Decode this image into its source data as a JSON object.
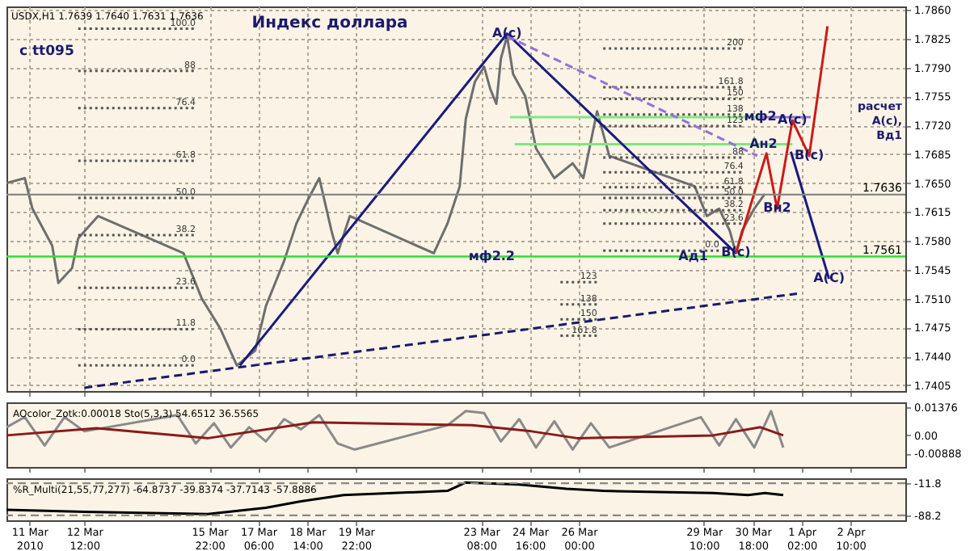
{
  "chart_data": [
    {
      "type": "line",
      "title": "Индекс доллара",
      "subtitle": "USDX,H1 1.7639 1.7640 1.7631 1.7636",
      "tick_labels": "y",
      "grid": true,
      "xlim": [
        "2010-03-10T09:00",
        "2010-04-03T22:00"
      ],
      "xticks": [
        {
          "value": "2010-03-11T00:00",
          "label": null
        },
        {
          "value": "2010-03-12T12:00",
          "label": null
        },
        {
          "value": "2010-03-15T22:00",
          "label": null
        },
        {
          "value": "2010-03-17T06:00",
          "label": null
        },
        {
          "value": "2010-03-18T14:00",
          "label": null
        },
        {
          "value": "2010-03-19T22:00",
          "label": null
        },
        {
          "value": "2010-03-23T08:00",
          "label": null
        },
        {
          "value": "2010-03-24T16:00",
          "label": null
        },
        {
          "value": "2010-03-26T00:00",
          "label": null
        },
        {
          "value": "2010-03-29T10:00",
          "label": null
        },
        {
          "value": "2010-03-30T18:00",
          "label": null
        },
        {
          "value": "2010-04-01T02:00",
          "label": null
        },
        {
          "value": "2010-04-02T10:00",
          "label": null
        }
      ],
      "ylim": [
        1.7398,
        1.7864
      ],
      "yticks": [
        {
          "value": 1.786,
          "label": "1.7860"
        },
        1.7825,
        {
          "value": 1.779,
          "label": "1.7790"
        },
        1.7755,
        {
          "value": 1.772,
          "label": "1.7720"
        },
        1.7685,
        {
          "value": 1.765,
          "label": "1.7650"
        },
        1.7615,
        {
          "value": 1.758,
          "label": "1.7580"
        },
        1.7545,
        {
          "value": 1.751,
          "label": "1.7510"
        },
        1.7475,
        {
          "value": 1.744,
          "label": "1.7440"
        },
        1.7405
      ],
      "series": [
        {
          "color": "#6e6e6e",
          "x": [
            "2010-03-10T09:00",
            "2010-03-10T21:00",
            "2010-03-11T02:00",
            "2010-03-11T15:00",
            "2010-03-11T19:00",
            "2010-03-12T04:00",
            "2010-03-12T08:00",
            "2010-03-12T21:00",
            "2010-03-15T05:00",
            "2010-03-15T17:00",
            "2010-03-16T05:00",
            "2010-03-16T16:00",
            "2010-03-17T04:00",
            "2010-03-17T11:00",
            "2010-03-17T23:00",
            "2010-03-18T07:00",
            "2010-03-18T14:00",
            "2010-03-18T22:00",
            "2010-03-19T06:00",
            "2010-03-19T10:00",
            "2010-03-19T18:00",
            "2010-03-22T01:00",
            "2010-03-22T10:00",
            "2010-03-22T18:00",
            "2010-03-22T22:00",
            "2010-03-23T04:00",
            "2010-03-23T10:00",
            "2010-03-23T14:00",
            "2010-03-23T18:00",
            "2010-03-23T21:00",
            "2010-03-24T01:00",
            "2010-03-24T05:00",
            "2010-03-24T13:00",
            "2010-03-24T20:00",
            "2010-03-25T08:00",
            "2010-03-25T20:00",
            "2010-03-26T03:00",
            "2010-03-26T08:00",
            "2010-03-26T12:00",
            "2010-03-26T20:00",
            "2010-03-29T04:00",
            "2010-03-29T12:00",
            "2010-03-29T20:00",
            "2010-03-30T03:00",
            "2010-03-30T07:00",
            "2010-03-30T11:00",
            "2010-03-30T19:00",
            "2010-03-31T02:00"
          ],
          "values": [
            1.765,
            1.7656,
            1.7619,
            1.7574,
            1.7529,
            1.7547,
            1.7583,
            1.761,
            1.7565,
            1.751,
            1.7474,
            1.7429,
            1.7447,
            1.7501,
            1.7556,
            1.7601,
            1.7628,
            1.7656,
            1.7592,
            1.7565,
            1.761,
            1.7565,
            1.7601,
            1.7646,
            1.7728,
            1.7773,
            1.7791,
            1.7764,
            1.7746,
            1.7801,
            1.7828,
            1.7782,
            1.7755,
            1.7692,
            1.7656,
            1.7674,
            1.7656,
            1.7701,
            1.7737,
            1.7683,
            1.7646,
            1.761,
            1.7619,
            1.7592,
            1.7565,
            1.7592,
            1.7619,
            1.7637
          ]
        },
        {
          "color": "#7ee87e",
          "x": [
            "2010-03-24T03:00",
            "2010-03-30T23:00"
          ],
          "values": [
            1.773,
            1.773
          ]
        },
        {
          "color": "#7ee87e",
          "x": [
            "2010-03-24T06:00",
            "2010-03-31T20:00"
          ],
          "values": [
            1.7697,
            1.7697
          ]
        },
        {
          "color": "#555555",
          "line_style": "dotted",
          "x": [
            "2010-03-12T08:00",
            "2010-03-15T13:00"
          ],
          "values": [
            1.7837,
            1.7837
          ]
        },
        {
          "color": "#555555",
          "line_style": "dotted",
          "x": [
            "2010-03-12T08:00",
            "2010-03-15T13:00"
          ],
          "values": [
            1.7786,
            1.7786
          ]
        },
        {
          "color": "#555555",
          "line_style": "dotted",
          "x": [
            "2010-03-12T08:00",
            "2010-03-15T13:00"
          ],
          "values": [
            1.7741,
            1.7741
          ]
        },
        {
          "color": "#555555",
          "line_style": "dotted",
          "x": [
            "2010-03-12T08:00",
            "2010-03-15T13:00"
          ],
          "values": [
            1.7677,
            1.7677
          ]
        },
        {
          "color": "#555555",
          "line_style": "dotted",
          "x": [
            "2010-03-12T08:00",
            "2010-03-15T13:00"
          ],
          "values": [
            1.7632,
            1.7632
          ]
        },
        {
          "color": "#555555",
          "line_style": "dotted",
          "x": [
            "2010-03-12T08:00",
            "2010-03-15T13:00"
          ],
          "values": [
            1.7587,
            1.7587
          ]
        },
        {
          "color": "#555555",
          "line_style": "dotted",
          "x": [
            "2010-03-12T08:00",
            "2010-03-15T13:00"
          ],
          "values": [
            1.7523,
            1.7523
          ]
        },
        {
          "color": "#555555",
          "line_style": "dotted",
          "x": [
            "2010-03-12T08:00",
            "2010-03-15T13:00"
          ],
          "values": [
            1.7473,
            1.7473
          ]
        },
        {
          "color": "#555555",
          "line_style": "dotted",
          "x": [
            "2010-03-12T08:00",
            "2010-03-15T13:00"
          ],
          "values": [
            1.7429,
            1.7429
          ]
        },
        {
          "color": "#555555",
          "line_style": "dotted",
          "x": [
            "2010-03-26T16:00",
            "2010-03-30T12:00"
          ],
          "values": [
            1.7813,
            1.7813
          ]
        },
        {
          "color": "#555555",
          "line_style": "dotted",
          "x": [
            "2010-03-26T16:00",
            "2010-03-30T12:00"
          ],
          "values": [
            1.7766,
            1.7766
          ]
        },
        {
          "color": "#555555",
          "line_style": "dotted",
          "x": [
            "2010-03-26T16:00",
            "2010-03-30T12:00"
          ],
          "values": [
            1.7752,
            1.7752
          ]
        },
        {
          "color": "#555555",
          "line_style": "dotted",
          "x": [
            "2010-03-26T16:00",
            "2010-03-30T12:00"
          ],
          "values": [
            1.7733,
            1.7733
          ]
        },
        {
          "color": "#555555",
          "line_style": "dotted",
          "x": [
            "2010-03-26T16:00",
            "2010-03-30T12:00"
          ],
          "values": [
            1.7719,
            1.7719
          ]
        },
        {
          "color": "#555555",
          "line_style": "dotted",
          "x": [
            "2010-03-26T16:00",
            "2010-03-30T12:00"
          ],
          "values": [
            1.7681,
            1.7681
          ]
        },
        {
          "color": "#555555",
          "line_style": "dotted",
          "x": [
            "2010-03-26T16:00",
            "2010-03-30T12:00"
          ],
          "values": [
            1.7663,
            1.7663
          ]
        },
        {
          "color": "#555555",
          "line_style": "dotted",
          "x": [
            "2010-03-26T16:00",
            "2010-03-30T12:00"
          ],
          "values": [
            1.7645,
            1.7645
          ]
        },
        {
          "color": "#555555",
          "line_style": "dotted",
          "x": [
            "2010-03-26T16:00",
            "2010-03-30T12:00"
          ],
          "values": [
            1.7632,
            1.7632
          ]
        },
        {
          "color": "#555555",
          "line_style": "dotted",
          "x": [
            "2010-03-26T16:00",
            "2010-03-30T12:00"
          ],
          "values": [
            1.7617,
            1.7617
          ]
        },
        {
          "color": "#555555",
          "line_style": "dotted",
          "x": [
            "2010-03-26T16:00",
            "2010-03-30T12:00"
          ],
          "values": [
            1.7601,
            1.7601
          ]
        },
        {
          "color": "#555555",
          "line_style": "dotted",
          "x": [
            "2010-03-26T16:00",
            "2010-03-29T20:00"
          ],
          "values": [
            1.7568,
            1.7568
          ]
        },
        {
          "color": "#555555",
          "line_style": "dotted",
          "x": [
            "2010-03-25T12:00",
            "2010-03-26T12:00"
          ],
          "values": [
            1.753,
            1.753
          ]
        },
        {
          "color": "#555555",
          "line_style": "dotted",
          "x": [
            "2010-03-25T12:00",
            "2010-03-26T12:00"
          ],
          "values": [
            1.7503,
            1.7503
          ]
        },
        {
          "color": "#555555",
          "line_style": "dotted",
          "x": [
            "2010-03-25T12:00",
            "2010-03-26T12:00"
          ],
          "values": [
            1.7485,
            1.7485
          ]
        },
        {
          "color": "#555555",
          "line_style": "dotted",
          "x": [
            "2010-03-25T12:00",
            "2010-03-26T12:00"
          ],
          "values": [
            1.7465,
            1.7465
          ]
        },
        {
          "color": "#1a1a80",
          "x": [
            "2010-03-16T18:00",
            "2010-03-24T01:00",
            "2010-03-30T07:00"
          ],
          "values": [
            1.7429,
            1.7831,
            1.7565
          ]
        },
        {
          "color": "#1a1a80",
          "x": [
            "2010-03-31T19:00",
            "2010-04-01T20:00"
          ],
          "values": [
            1.7688,
            1.7534
          ]
        },
        {
          "color": "#cc1a1a",
          "x": [
            "2010-03-30T07:00",
            "2010-03-31T03:00",
            "2010-03-31T10:00",
            "2010-03-31T20:00",
            "2010-04-01T07:00",
            "2010-04-01T19:00"
          ],
          "values": [
            1.7565,
            1.7686,
            1.7619,
            1.7726,
            1.7683,
            1.784
          ]
        },
        {
          "color": "#9370db",
          "line_style": "dashed",
          "x": [
            "2010-03-24T01:00",
            "2010-03-30T21:00"
          ],
          "values": [
            1.7828,
            1.7683
          ]
        },
        {
          "color": "#9370db",
          "x": [
            "2010-03-30T23:00",
            "2010-04-01T08:00"
          ],
          "values": [
            1.773,
            1.773
          ]
        },
        {
          "color": "#1a1a6e",
          "line_style": "dashed",
          "x": [
            "2010-03-12T12:00",
            "2010-03-31T23:00"
          ],
          "values": [
            1.7402,
            1.7516
          ]
        }
      ],
      "ref_lines": [
        {
          "axis": "y",
          "value": 1.7561,
          "label": "1.7561",
          "color": "#33dd33"
        },
        {
          "axis": "y",
          "value": 1.7636,
          "label": "1.7636",
          "color": "#888888"
        }
      ],
      "annotations": [
        "c tt095",
        "расчет A(c), Вд1",
        {
          "text": "A(c)",
          "x": "2010-03-24T01:00",
          "y": 1.7831
        },
        {
          "text": "мф2.2",
          "x": "2010-03-23T15:00",
          "y": 1.7561
        },
        {
          "text": "Ад1",
          "x": "2010-03-29T03:00",
          "y": 1.7561
        },
        {
          "text": "B(c)",
          "x": "2010-03-30T07:00",
          "y": 1.7565
        },
        {
          "text": "мф2",
          "x": "2010-03-30T23:00",
          "y": 1.773
        },
        {
          "text": "A(c)",
          "x": "2010-03-31T20:00",
          "y": 1.7726
        },
        {
          "text": "Ан2",
          "x": "2010-03-31T01:00",
          "y": 1.7697
        },
        {
          "text": "B(c)",
          "x": "2010-04-01T07:00",
          "y": 1.7683
        },
        {
          "text": "Вн2",
          "x": "2010-03-31T10:00",
          "y": 1.7619
        },
        {
          "text": "A(C)",
          "x": "2010-04-01T20:00",
          "y": 1.7534
        },
        {
          "text": "100.0",
          "x": "2010-03-15T13:00",
          "y": 1.7837
        },
        {
          "text": "88",
          "x": "2010-03-15T13:00",
          "y": 1.7786
        },
        {
          "text": "76.4",
          "x": "2010-03-15T13:00",
          "y": 1.7741
        },
        {
          "text": "61.8",
          "x": "2010-03-15T13:00",
          "y": 1.7677
        },
        {
          "text": "50.0",
          "x": "2010-03-15T13:00",
          "y": 1.7632
        },
        {
          "text": "38.2",
          "x": "2010-03-15T13:00",
          "y": 1.7587
        },
        {
          "text": "23.6",
          "x": "2010-03-15T13:00",
          "y": 1.7523
        },
        {
          "text": "11.8",
          "x": "2010-03-15T13:00",
          "y": 1.7473
        },
        {
          "text": "0.0",
          "x": "2010-03-15T13:00",
          "y": 1.7429
        },
        {
          "text": "200",
          "x": "2010-03-30T12:00",
          "y": 1.7813
        },
        {
          "text": "161.8",
          "x": "2010-03-30T12:00",
          "y": 1.7766
        },
        {
          "text": "150",
          "x": "2010-03-30T12:00",
          "y": 1.7752
        },
        {
          "text": "138",
          "x": "2010-03-30T12:00",
          "y": 1.7733
        },
        {
          "text": "123",
          "x": "2010-03-30T12:00",
          "y": 1.7719
        },
        {
          "text": "88",
          "x": "2010-03-30T12:00",
          "y": 1.7681
        },
        {
          "text": "76.4",
          "x": "2010-03-30T12:00",
          "y": 1.7663
        },
        {
          "text": "61.8",
          "x": "2010-03-30T12:00",
          "y": 1.7645
        },
        {
          "text": "50.0",
          "x": "2010-03-30T12:00",
          "y": 1.7632
        },
        {
          "text": "38.2",
          "x": "2010-03-30T12:00",
          "y": 1.7617
        },
        {
          "text": "23.6",
          "x": "2010-03-30T12:00",
          "y": 1.7601
        },
        {
          "text": "0.0",
          "x": "2010-03-29T20:00",
          "y": 1.7568
        },
        {
          "text": "123",
          "x": "2010-03-26T12:00",
          "y": 1.753
        },
        {
          "text": "138",
          "x": "2010-03-26T12:00",
          "y": 1.7503
        },
        {
          "text": "150",
          "x": "2010-03-26T12:00",
          "y": 1.7485
        },
        {
          "text": "161.8",
          "x": "2010-03-26T12:00",
          "y": 1.7465
        }
      ]
    },
    {
      "type": "line",
      "tick_labels": "y",
      "xlim": [
        "2010-03-10T09:00",
        "2010-04-03T22:00"
      ],
      "xticks": [
        {
          "value": "2010-03-11T00:00",
          "label": null
        },
        {
          "value": "2010-03-12T12:00",
          "label": null
        },
        {
          "value": "2010-03-15T22:00",
          "label": null
        },
        {
          "value": "2010-03-17T06:00",
          "label": null
        },
        {
          "value": "2010-03-18T14:00",
          "label": null
        },
        {
          "value": "2010-03-19T22:00",
          "label": null
        },
        {
          "value": "2010-03-23T08:00",
          "label": null
        },
        {
          "value": "2010-03-24T16:00",
          "label": null
        },
        {
          "value": "2010-03-26T00:00",
          "label": null
        },
        {
          "value": "2010-03-29T10:00",
          "label": null
        },
        {
          "value": "2010-03-30T18:00",
          "label": null
        },
        {
          "value": "2010-04-01T02:00",
          "label": null
        },
        {
          "value": "2010-04-02T10:00",
          "label": null
        }
      ],
      "ylim": [
        -0.0156,
        0.0163
      ],
      "yticks": [
        0.01376,
        {
          "value": 0,
          "label": "0.00"
        },
        -0.00888
      ],
      "series": [
        {
          "color": "#8a8a8a",
          "x": [
            "2010-03-10T09:00",
            "2010-03-10T21:00",
            "2010-03-11T10:00",
            "2010-03-11T23:00",
            "2010-03-12T12:00",
            "2010-03-15T01:00",
            "2010-03-15T13:00",
            "2010-03-16T01:00",
            "2010-03-16T12:00",
            "2010-03-17T00:00",
            "2010-03-17T11:00",
            "2010-03-17T23:00",
            "2010-03-18T10:00",
            "2010-03-18T22:00",
            "2010-03-19T10:00",
            "2010-03-19T21:00",
            "2010-03-22T10:00",
            "2010-03-22T22:00",
            "2010-03-23T10:00",
            "2010-03-23T21:00",
            "2010-03-24T09:00",
            "2010-03-24T20:00",
            "2010-03-25T08:00",
            "2010-03-25T20:00",
            "2010-03-26T08:00",
            "2010-03-26T20:00",
            "2010-03-29T08:00",
            "2010-03-29T20:00",
            "2010-03-30T07:00",
            "2010-03-30T19:00",
            "2010-03-31T06:00",
            "2010-03-31T14:00"
          ],
          "values": [
            0.004,
            0.009,
            -0.005,
            0.009,
            0.002,
            0.01,
            -0.004,
            0.006,
            -0.006,
            0.004,
            -0.003,
            0.008,
            0.003,
            0.01,
            -0.004,
            -0.007,
            0.005,
            0.012,
            0.011,
            -0.003,
            0.008,
            -0.006,
            0.007,
            -0.007,
            0.006,
            -0.006,
            0.009,
            -0.005,
            0.008,
            -0.006,
            0.012,
            -0.006
          ]
        },
        {
          "color": "#8b1a1a",
          "x": [
            "2010-03-10T09:00",
            "2010-03-12T20:00",
            "2010-03-15T21:00",
            "2010-03-18T18:00",
            "2010-03-23T02:00",
            "2010-03-24T17:00",
            "2010-03-25T23:00",
            "2010-03-29T16:00",
            "2010-03-30T23:00",
            "2010-03-31T14:00"
          ],
          "values": [
            0,
            0.0035,
            -0.0014,
            0.0064,
            0.005,
            0.002,
            -0.0014,
            0,
            0.004,
            0
          ]
        }
      ],
      "annotations": [
        "AOcolor_Zotk:0.00018 Sto(5,3,3) 54.6512 36.5565"
      ]
    },
    {
      "type": "line",
      "xlim": [
        "2010-03-10T09:00",
        "2010-04-03T22:00"
      ],
      "xticks": [
        {
          "value": "2010-03-11T00:00",
          "label": "11 Mar 2010"
        },
        {
          "value": "2010-03-12T12:00",
          "label": "12 Mar 12:00"
        },
        {
          "value": "2010-03-15T22:00",
          "label": "15 Mar 22:00"
        },
        {
          "value": "2010-03-17T06:00",
          "label": "17 Mar 06:00"
        },
        {
          "value": "2010-03-18T14:00",
          "label": "18 Mar 14:00"
        },
        {
          "value": "2010-03-19T22:00",
          "label": "19 Mar 22:00"
        },
        {
          "value": "2010-03-23T08:00",
          "label": "23 Mar 08:00"
        },
        {
          "value": "2010-03-24T16:00",
          "label": "24 Mar 16:00"
        },
        {
          "value": "2010-03-26T00:00",
          "label": "26 Mar 00:00"
        },
        {
          "value": "2010-03-29T10:00",
          "label": "29 Mar 10:00"
        },
        {
          "value": "2010-03-30T18:00",
          "label": "30 Mar 18:00"
        },
        {
          "value": "2010-04-01T02:00",
          "label": "1 Apr 02:00"
        },
        {
          "value": "2010-04-02T10:00",
          "label": "2 Apr 10:00"
        }
      ],
      "ylim": [
        -100,
        0
      ],
      "yticks": [
        -11.8,
        -88.2
      ],
      "series": [
        {
          "color": "#000000",
          "x": [
            "2010-03-10T09:00",
            "2010-03-12T12:00",
            "2010-03-15T21:00",
            "2010-03-17T11:00",
            "2010-03-18T10:00",
            "2010-03-19T14:00",
            "2010-03-22T10:00",
            "2010-03-22T22:00",
            "2010-03-24T09:00",
            "2010-03-25T16:00",
            "2010-03-26T16:00",
            "2010-03-29T16:00",
            "2010-03-30T15:00",
            "2010-03-31T02:00",
            "2010-03-31T14:00"
          ],
          "values": [
            -75,
            -80,
            -85,
            -70,
            -55,
            -40,
            -30,
            -10,
            -15,
            -25,
            -30,
            -35,
            -40,
            -35,
            -40
          ]
        }
      ],
      "ref_lines": [
        {
          "axis": "y",
          "value": -11.8,
          "color": "#888888",
          "line_style": "dashed"
        },
        {
          "axis": "y",
          "value": -88.2,
          "color": "#888888",
          "line_style": "dashed"
        }
      ],
      "annotations": [
        "%R_Multi(21,55,77,277) -64.8737 -39.8374 -37.7143 -57.8886"
      ]
    }
  ]
}
